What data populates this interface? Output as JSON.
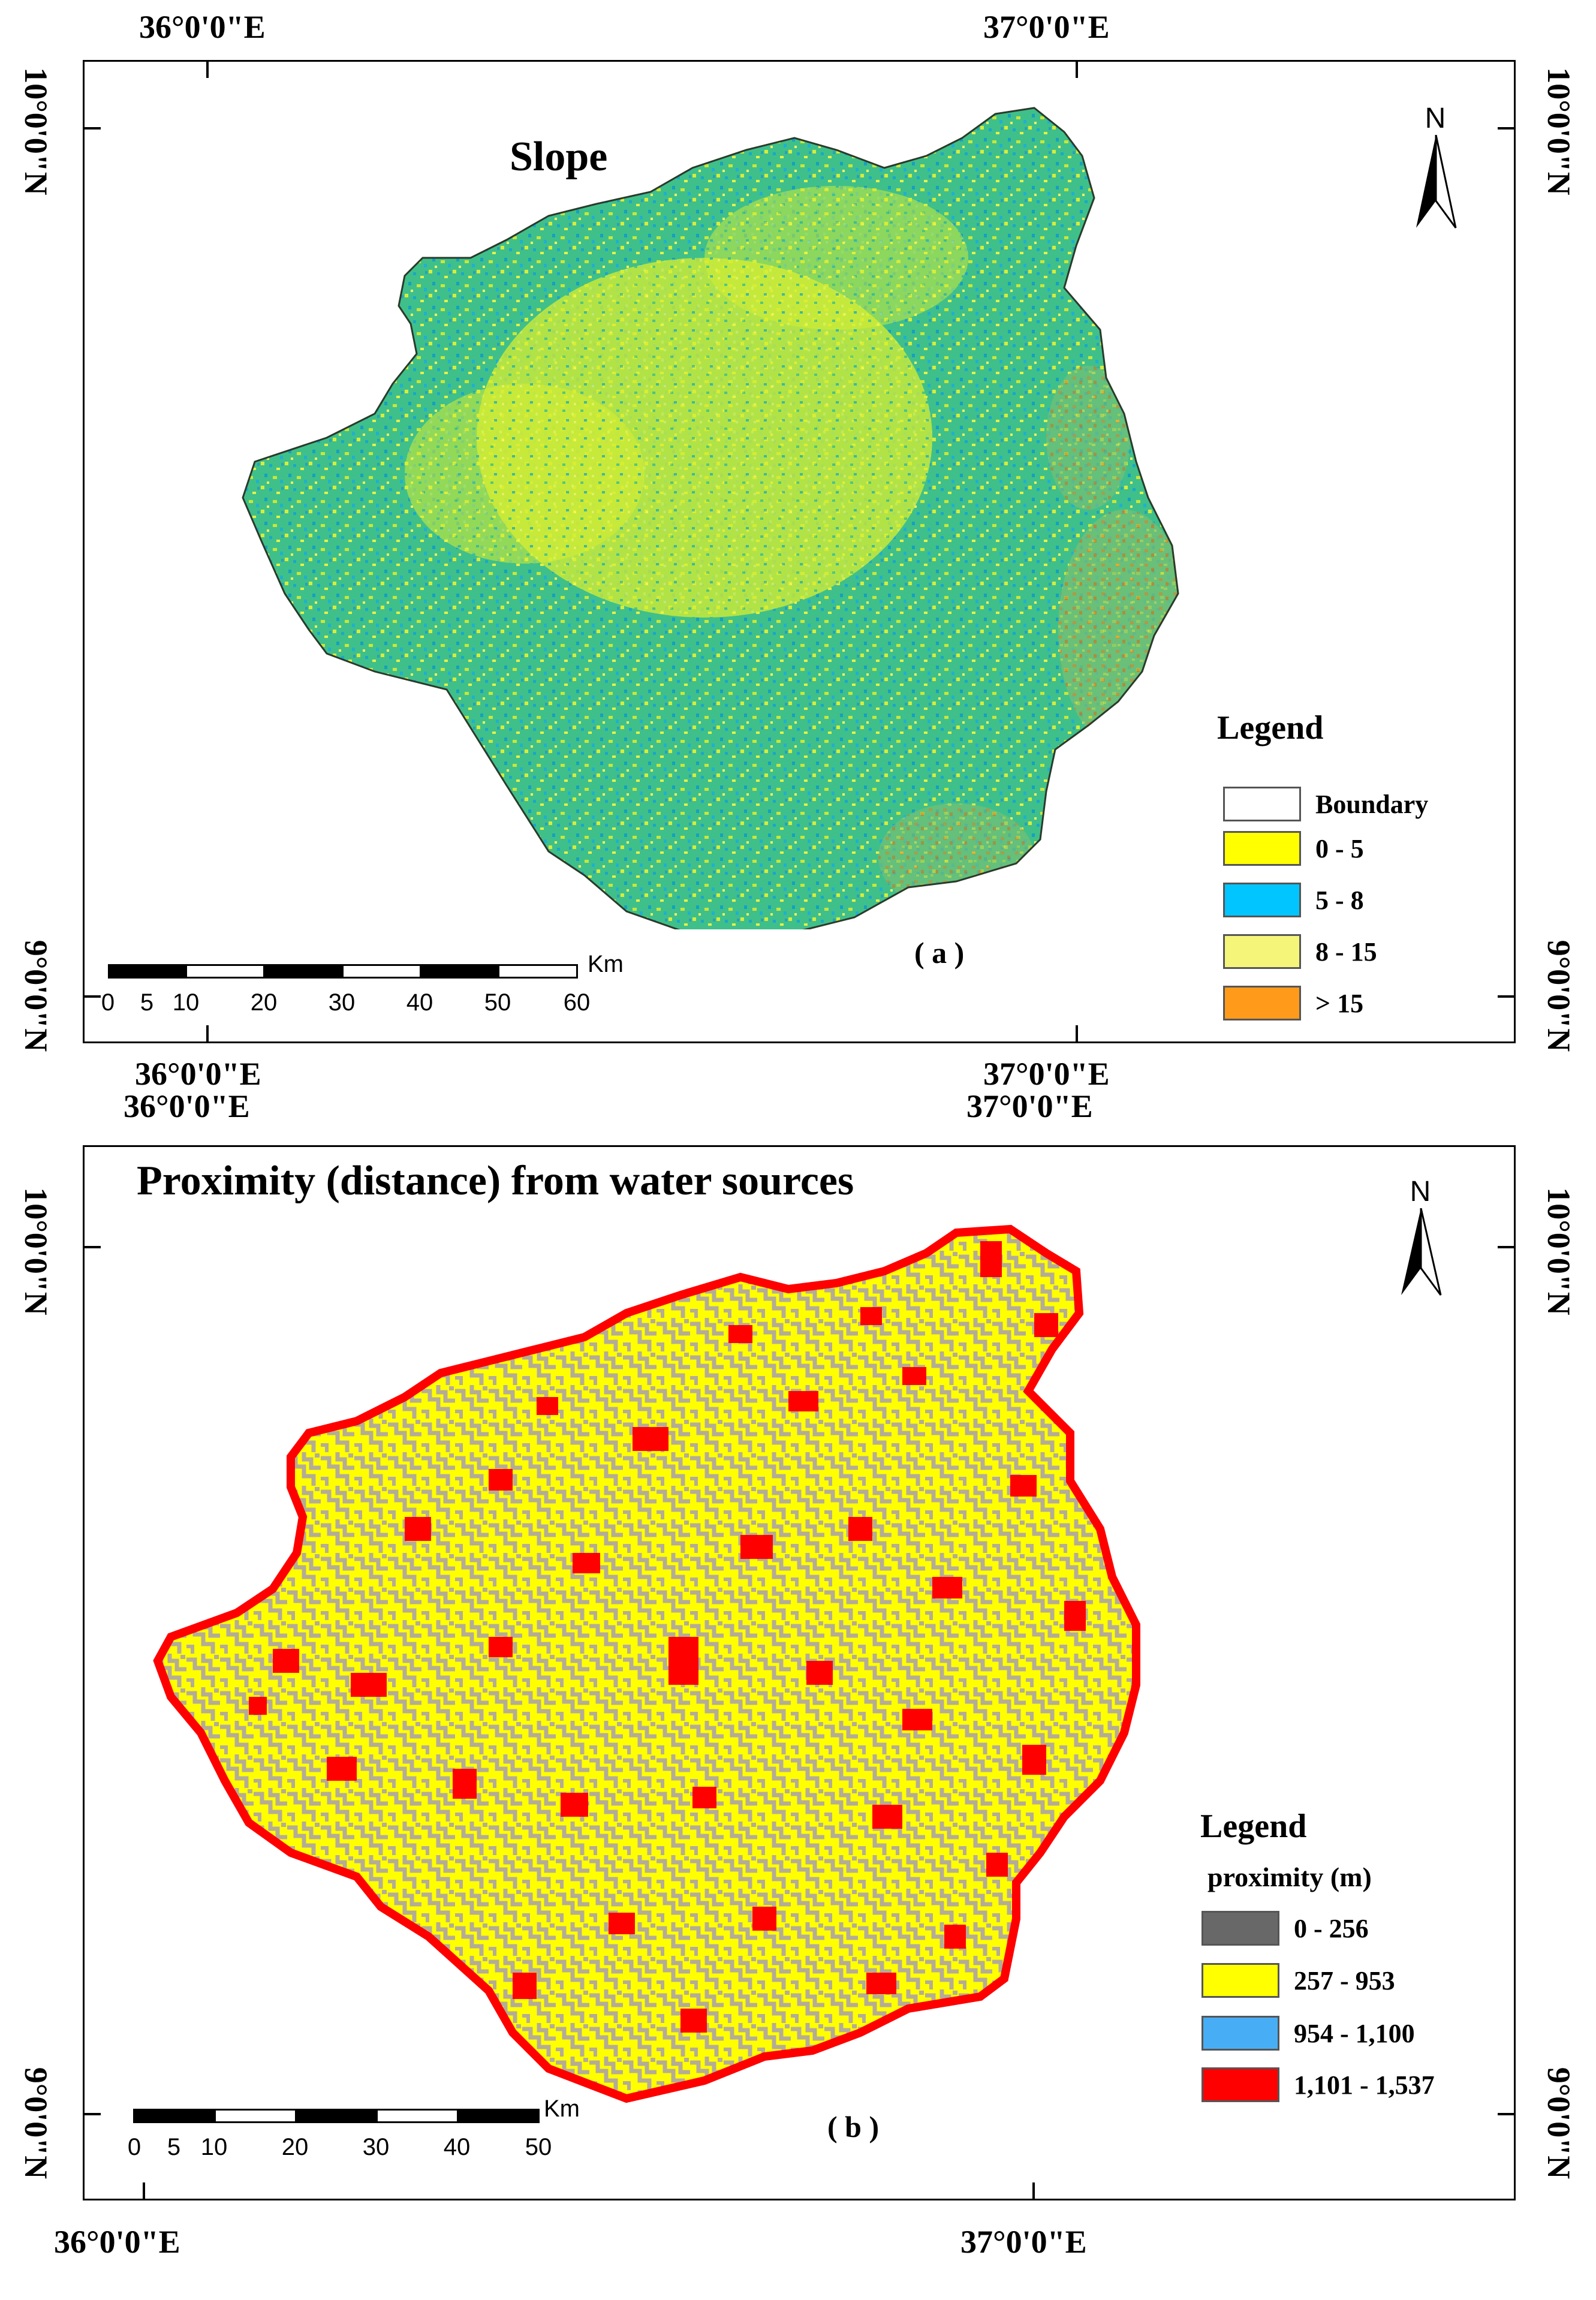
{
  "panel_a": {
    "title": "Slope",
    "panel_label": "( a )",
    "coords": {
      "top_left_lon": "36°0'0\"E",
      "top_right_lon": "37°0'0\"E",
      "bottom_left_lon": "36°0'0\"E",
      "bottom_right_lon": "37°0'0\"E",
      "left_top_lat": "10°0'0\"N",
      "left_bottom_lat": "9°0'0\"N",
      "right_top_lat": "10°0'0\"N",
      "right_bottom_lat": "9°0'0\"N"
    },
    "north_label": "N",
    "scale": {
      "unit": "Km",
      "ticks": [
        "0",
        "5",
        "10",
        "20",
        "30",
        "40",
        "50",
        "60"
      ]
    },
    "legend": {
      "title": "Legend",
      "items": [
        {
          "label": "Boundary",
          "color": "#ffffff"
        },
        {
          "label": "0 - 5",
          "color": "#ffff00"
        },
        {
          "label": "5 - 8",
          "color": "#00c5ff"
        },
        {
          "label": "8 - 15",
          "color": "#f5f57a"
        },
        {
          "label": "> 15",
          "color": "#ff9a1a"
        }
      ]
    }
  },
  "panel_b": {
    "title": "Proximity (distance) from water sources",
    "panel_label": "( b )",
    "coords": {
      "top_left_lon": "36°0'0\"E",
      "top_right_lon": "37°0'0\"E",
      "bottom_left_lon": "36°0'0\"E",
      "bottom_right_lon": "37°0'0\"E",
      "left_top_lat": "10°0'0\"N",
      "left_bottom_lat": "9°0'0\"N",
      "right_top_lat": "10°0'0\"N",
      "right_bottom_lat": "9°0'0\"N"
    },
    "north_label": "N",
    "scale": {
      "unit": "Km",
      "ticks": [
        "0",
        "5",
        "10",
        "20",
        "30",
        "40",
        "50"
      ]
    },
    "legend": {
      "title": "Legend",
      "subtitle": "proximity (m)",
      "items": [
        {
          "label": "0 - 256",
          "color": "#686868"
        },
        {
          "label": "257 -  953",
          "color": "#ffff00"
        },
        {
          "label": "954 - 1,100",
          "color": "#47aef5"
        },
        {
          "label": "1,101 - 1,537",
          "color": "#ff0000"
        }
      ]
    }
  }
}
